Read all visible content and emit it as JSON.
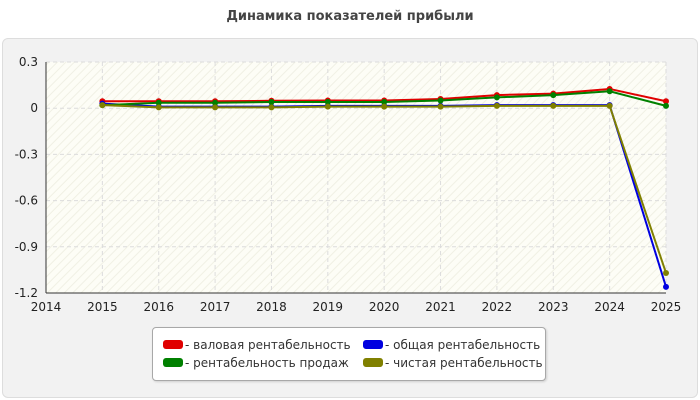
{
  "chart_data": {
    "type": "line",
    "title": "Динамика показателей прибыли",
    "x": [
      "2014",
      "2015",
      "2016",
      "2017",
      "2018",
      "2019",
      "2020",
      "2021",
      "2022",
      "2023",
      "2024",
      "2025"
    ],
    "y_ticks": [
      "0.3",
      "0",
      "-0.3",
      "-0.6",
      "-0.9",
      "-1.2"
    ],
    "ylim": [
      -1.2,
      0.3
    ],
    "grid": true,
    "legend_position": "bottom-center",
    "series": [
      {
        "name": "- валовая рентабельность",
        "color": "#e00000",
        "x": [
          "2015",
          "2016",
          "2017",
          "2018",
          "2019",
          "2020",
          "2021",
          "2022",
          "2023",
          "2024",
          "2025"
        ],
        "values": [
          0.045,
          0.045,
          0.045,
          0.048,
          0.05,
          0.05,
          0.06,
          0.085,
          0.095,
          0.125,
          0.045
        ]
      },
      {
        "name": "- общая рентабельность",
        "color": "#0000e0",
        "x": [
          "2015",
          "2016",
          "2017",
          "2018",
          "2019",
          "2020",
          "2021",
          "2022",
          "2023",
          "2024",
          "2025"
        ],
        "values": [
          0.03,
          0.01,
          0.01,
          0.01,
          0.015,
          0.015,
          0.015,
          0.02,
          0.02,
          0.02,
          -1.16
        ]
      },
      {
        "name": "- рентабельность продаж",
        "color": "#008000",
        "x": [
          "2015",
          "2016",
          "2017",
          "2018",
          "2019",
          "2020",
          "2021",
          "2022",
          "2023",
          "2024",
          "2025"
        ],
        "values": [
          0.02,
          0.035,
          0.035,
          0.04,
          0.04,
          0.04,
          0.05,
          0.07,
          0.085,
          0.11,
          0.015
        ]
      },
      {
        "name": "- чистая рентабельность",
        "color": "#808000",
        "x": [
          "2015",
          "2016",
          "2017",
          "2018",
          "2019",
          "2020",
          "2021",
          "2022",
          "2023",
          "2024",
          "2025"
        ],
        "values": [
          0.02,
          0.005,
          0.005,
          0.005,
          0.01,
          0.01,
          0.01,
          0.015,
          0.015,
          0.015,
          -1.07
        ]
      }
    ]
  }
}
